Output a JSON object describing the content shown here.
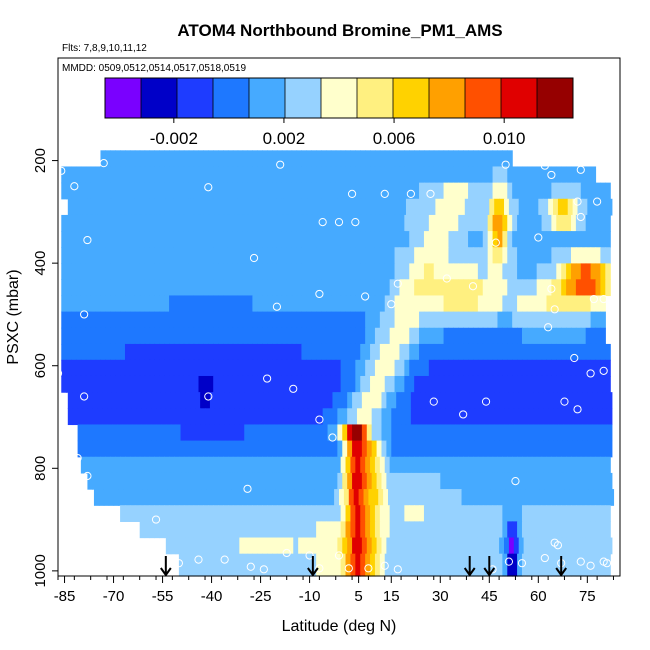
{
  "chart_data": {
    "type": "heatmap",
    "title": "ATOM4 Northbound Bromine_PM1_AMS",
    "flights_text": "Flts: 7,8,9,10,11,12",
    "dates_text": "MMDD: 0509,0512,0514,0517,0518,0519",
    "xlabel": "Latitude (deg N)",
    "ylabel": "PSXC (mbar)",
    "xlim": [
      -87,
      85
    ],
    "ylim": [
      1010,
      0
    ],
    "x_ticks": [
      -85,
      -70,
      -55,
      -40,
      -25,
      -10,
      5,
      15,
      30,
      45,
      60,
      75
    ],
    "y_ticks": [
      200,
      400,
      600,
      800,
      1000
    ],
    "colorbar": {
      "min": -0.0045,
      "max": 0.0125,
      "ticks": [
        -0.002,
        0.002,
        0.006,
        0.01
      ],
      "tick_labels": [
        "-0.002",
        "0.002",
        "0.006",
        "0.010"
      ],
      "colors": [
        "#7a00ff",
        "#0000c8",
        "#1e3cff",
        "#1e78ff",
        "#46aaff",
        "#96d2ff",
        "#ffffcc",
        "#fff080",
        "#ffd200",
        "#ffa000",
        "#ff5000",
        "#e00000",
        "#960000"
      ]
    },
    "layers": [
      {
        "p": 196,
        "x0": -74,
        "x1": 52,
        "base": 0.0015
      },
      {
        "p": 227,
        "x0": -86,
        "x1": 77,
        "base": 0.0015
      },
      {
        "p": 259,
        "x0": -86,
        "x1": 82,
        "base": 0.0017
      },
      {
        "p": 290,
        "x0": -84,
        "x1": 82,
        "base": 0.0019
      },
      {
        "p": 322,
        "x0": -86,
        "x1": 82,
        "base": 0.0018
      },
      {
        "p": 353,
        "x0": -86,
        "x1": 82,
        "base": 0.0012
      },
      {
        "p": 385,
        "x0": -86,
        "x1": 82,
        "base": 0.0016
      },
      {
        "p": 416,
        "x0": -86,
        "x1": 82,
        "base": 0.0013
      },
      {
        "p": 447,
        "x0": -86,
        "x1": 81,
        "base": 0.0011
      },
      {
        "p": 479,
        "x0": -86,
        "x1": 80,
        "base": 0.0008
      },
      {
        "p": 510,
        "x0": -86,
        "x1": 80,
        "base": 0.0004
      },
      {
        "p": 542,
        "x0": -86,
        "x1": 80,
        "base": 0.0001
      },
      {
        "p": 573,
        "x0": -86,
        "x1": 82,
        "base": -0.0004
      },
      {
        "p": 604,
        "x0": -86,
        "x1": 82,
        "base": -0.0009
      },
      {
        "p": 636,
        "x0": -86,
        "x1": 82,
        "base": -0.0014
      },
      {
        "p": 667,
        "x0": -84,
        "x1": 82,
        "base": -0.0012
      },
      {
        "p": 699,
        "x0": -84,
        "x1": 82,
        "base": -0.0008
      },
      {
        "p": 730,
        "x0": -81,
        "x1": 82,
        "base": -0.0002
      },
      {
        "p": 762,
        "x0": -81,
        "x1": 82,
        "base": 0.0001
      },
      {
        "p": 793,
        "x0": -80,
        "x1": 82,
        "base": 0.0009
      },
      {
        "p": 825,
        "x0": -78,
        "x1": 82,
        "base": 0.0016
      },
      {
        "p": 856,
        "x0": -76,
        "x1": 82,
        "base": 0.0019
      },
      {
        "p": 888,
        "x0": -68,
        "x1": 82,
        "base": 0.0022
      },
      {
        "p": 919,
        "x0": -62,
        "x1": 82,
        "base": 0.0023
      },
      {
        "p": 951,
        "x0": -54,
        "x1": 82,
        "base": 0.0024
      },
      {
        "p": 982,
        "x0": -50,
        "x1": 82,
        "base": 0.0024
      }
    ],
    "features": [
      {
        "type": "plume",
        "lat": 4,
        "p_min": 700,
        "p_max": 1010,
        "width": 3.5,
        "peak": 0.0092
      },
      {
        "type": "plume",
        "lat": 9,
        "p_min": 740,
        "p_max": 1010,
        "width": 4,
        "peak": 0.0058
      },
      {
        "type": "tilt",
        "lat_top": 36,
        "lat_bottom": 3,
        "p_top": 240,
        "p_bottom": 760,
        "width": 8,
        "peak": 0.0038
      },
      {
        "type": "blob",
        "lat": 48,
        "p": 330,
        "rx": 3,
        "ry": 70,
        "peak": 0.0085
      },
      {
        "type": "blob",
        "lat": 68,
        "p": 300,
        "rx": 4,
        "ry": 35,
        "peak": 0.007
      },
      {
        "type": "blob",
        "lat": 75,
        "p": 430,
        "rx": 8,
        "ry": 40,
        "peak": 0.0095
      },
      {
        "type": "blob",
        "lat": 37,
        "p": 460,
        "rx": 12,
        "ry": 55,
        "peak": 0.0055
      },
      {
        "type": "blob",
        "lat": 65,
        "p": 480,
        "rx": 14,
        "ry": 50,
        "peak": 0.0045
      },
      {
        "type": "blob",
        "lat": -40,
        "p": 640,
        "rx": 25,
        "ry": 90,
        "peak": -0.0014
      },
      {
        "type": "blob",
        "lat": -24,
        "p": 950,
        "rx": 12,
        "ry": 35,
        "peak": 0.0038
      },
      {
        "type": "blob",
        "lat": -5,
        "p": 950,
        "rx": 6,
        "ry": 40,
        "peak": 0.0045
      },
      {
        "type": "blob",
        "lat": 52,
        "p": 960,
        "rx": 2,
        "ry": 60,
        "peak": -0.0035
      },
      {
        "type": "blob",
        "lat": -42,
        "p": 650,
        "rx": 2,
        "ry": 20,
        "peak": -0.004
      },
      {
        "type": "blob",
        "lat": 22,
        "p": 880,
        "rx": 10,
        "ry": 60,
        "peak": 0.0035
      }
    ],
    "circle_points": [
      {
        "lat": -86,
        "p": 220
      },
      {
        "lat": -73,
        "p": 205
      },
      {
        "lat": -82,
        "p": 250
      },
      {
        "lat": -41,
        "p": 252
      },
      {
        "lat": -19,
        "p": 208
      },
      {
        "lat": 50,
        "p": 208
      },
      {
        "lat": 62,
        "p": 210
      },
      {
        "lat": 64,
        "p": 228
      },
      {
        "lat": 73,
        "p": 218
      },
      {
        "lat": 79,
        "p": 215
      },
      {
        "lat": -78,
        "p": 355
      },
      {
        "lat": -27,
        "p": 390
      },
      {
        "lat": -6,
        "p": 320
      },
      {
        "lat": -1,
        "p": 320
      },
      {
        "lat": 4,
        "p": 320
      },
      {
        "lat": 3,
        "p": 265
      },
      {
        "lat": 13,
        "p": 265
      },
      {
        "lat": 21,
        "p": 265
      },
      {
        "lat": 27,
        "p": 265
      },
      {
        "lat": 47,
        "p": 360
      },
      {
        "lat": 60,
        "p": 350
      },
      {
        "lat": 72,
        "p": 280
      },
      {
        "lat": 73,
        "p": 310
      },
      {
        "lat": 78,
        "p": 280
      },
      {
        "lat": -79,
        "p": 500
      },
      {
        "lat": -20,
        "p": 485
      },
      {
        "lat": -7,
        "p": 460
      },
      {
        "lat": 7,
        "p": 465
      },
      {
        "lat": 15,
        "p": 480
      },
      {
        "lat": 17,
        "p": 440
      },
      {
        "lat": 32,
        "p": 430
      },
      {
        "lat": 40,
        "p": 445
      },
      {
        "lat": 64,
        "p": 450
      },
      {
        "lat": 65,
        "p": 490
      },
      {
        "lat": 63,
        "p": 525
      },
      {
        "lat": 77,
        "p": 470
      },
      {
        "lat": 80,
        "p": 470
      },
      {
        "lat": -87,
        "p": 615
      },
      {
        "lat": -79,
        "p": 660
      },
      {
        "lat": -41,
        "p": 660
      },
      {
        "lat": -23,
        "p": 625
      },
      {
        "lat": -15,
        "p": 645
      },
      {
        "lat": -7,
        "p": 705
      },
      {
        "lat": -3,
        "p": 740
      },
      {
        "lat": 28,
        "p": 670
      },
      {
        "lat": 44,
        "p": 670
      },
      {
        "lat": 37,
        "p": 695
      },
      {
        "lat": 68,
        "p": 670
      },
      {
        "lat": 72,
        "p": 685
      },
      {
        "lat": 76,
        "p": 615
      },
      {
        "lat": 80,
        "p": 610
      },
      {
        "lat": 71,
        "p": 585
      },
      {
        "lat": -81,
        "p": 780
      },
      {
        "lat": -78,
        "p": 815
      },
      {
        "lat": -29,
        "p": 840
      },
      {
        "lat": 53,
        "p": 825
      },
      {
        "lat": -57,
        "p": 900
      },
      {
        "lat": -57,
        "p": 950
      },
      {
        "lat": -44,
        "p": 978
      },
      {
        "lat": -36,
        "p": 978
      },
      {
        "lat": -50,
        "p": 985
      },
      {
        "lat": -28,
        "p": 992
      },
      {
        "lat": -24,
        "p": 997
      },
      {
        "lat": -17,
        "p": 965
      },
      {
        "lat": -10,
        "p": 970
      },
      {
        "lat": -7,
        "p": 995
      },
      {
        "lat": -1,
        "p": 970
      },
      {
        "lat": 2,
        "p": 995
      },
      {
        "lat": 8,
        "p": 995
      },
      {
        "lat": 13,
        "p": 990
      },
      {
        "lat": 17,
        "p": 997
      },
      {
        "lat": 46,
        "p": 997
      },
      {
        "lat": 51,
        "p": 982
      },
      {
        "lat": 55,
        "p": 985
      },
      {
        "lat": 62,
        "p": 975
      },
      {
        "lat": 66,
        "p": 950
      },
      {
        "lat": 67,
        "p": 985
      },
      {
        "lat": 73,
        "p": 982
      },
      {
        "lat": 76,
        "p": 990
      },
      {
        "lat": 80,
        "p": 982
      },
      {
        "lat": 81,
        "p": 985
      },
      {
        "lat": 65,
        "p": 945
      }
    ],
    "arrows": [
      -54,
      -9,
      39,
      45,
      67
    ]
  }
}
